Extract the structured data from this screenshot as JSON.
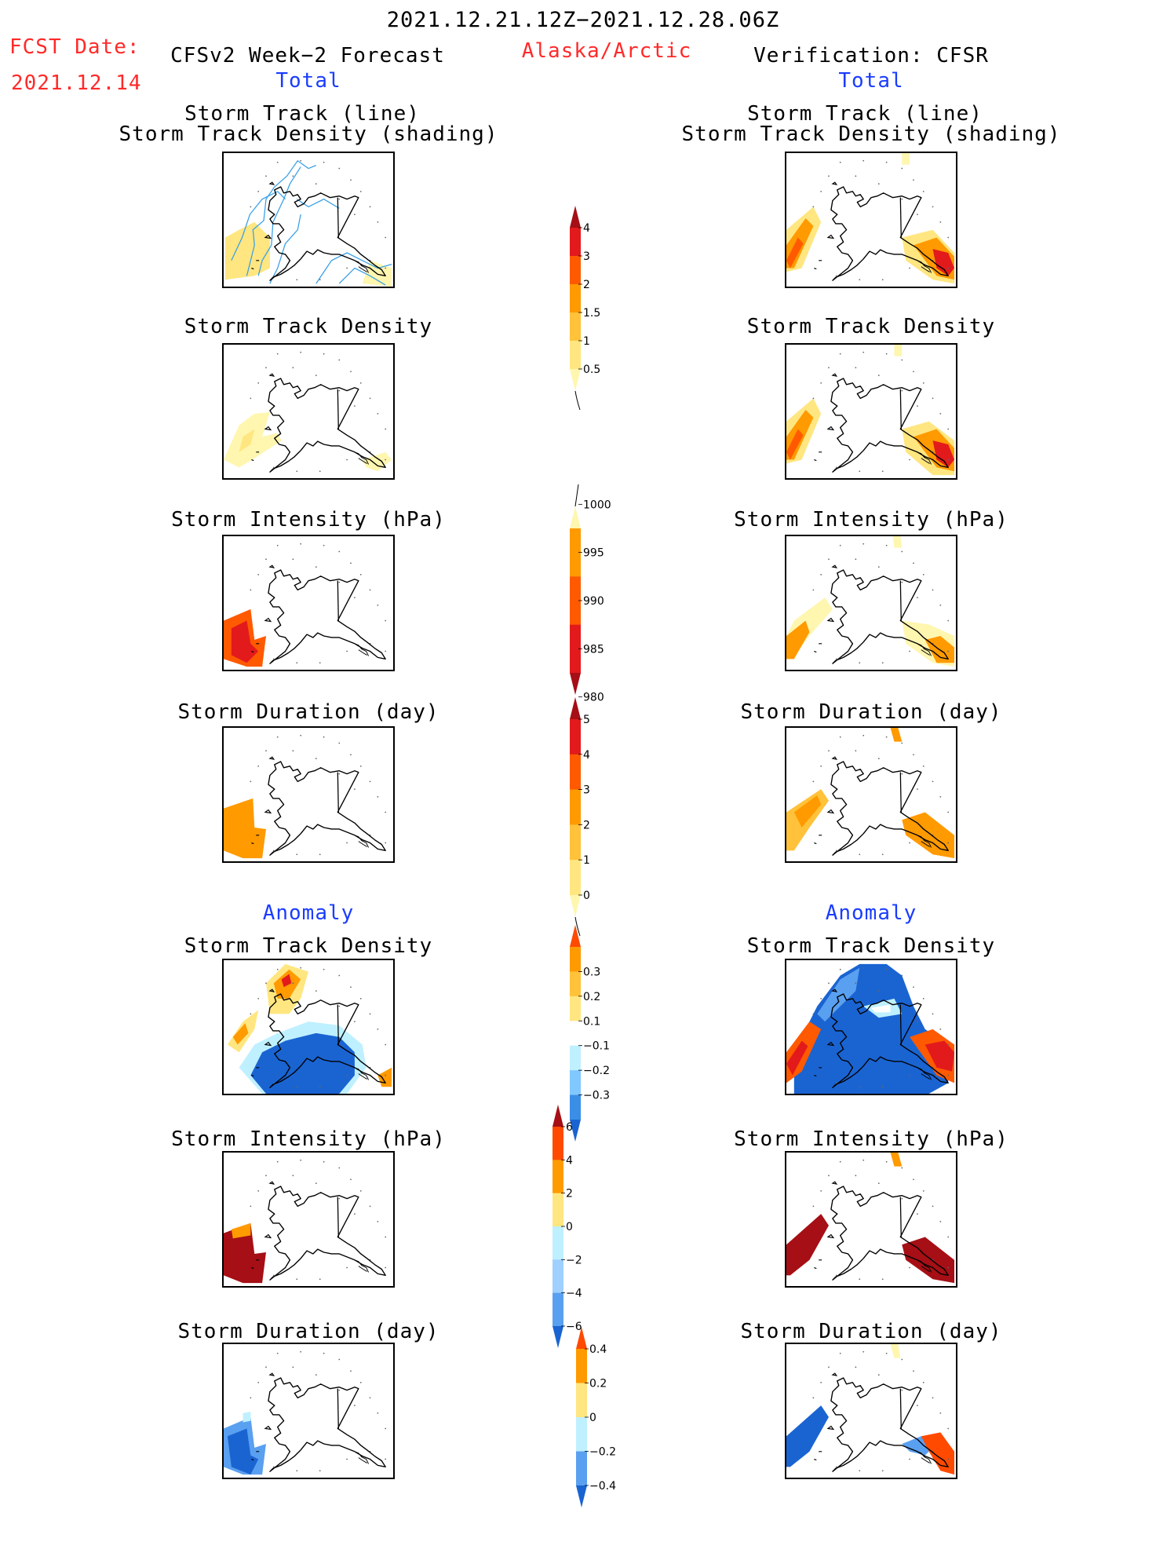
{
  "header": {
    "valid_period": "2021.12.21.12Z−2021.12.28.06Z",
    "fcst_label": "FCST Date:",
    "fcst_date": "2021.12.14",
    "forecast_title": "CFSv2 Week−2 Forecast",
    "region": "Alaska/Arctic",
    "verification_title": "Verification: CFSR",
    "total_label_left": "Total",
    "total_label_right": "Total",
    "anomaly_label_left": "Anomaly",
    "anomaly_label_right": "Anomaly"
  },
  "panels": {
    "track_line1": "Storm Track (line)",
    "track_line2": "Storm Track Density (shading)",
    "density": "Storm Track Density",
    "intensity": "Storm Intensity (hPa)",
    "duration": "Storm Duration (day)"
  },
  "colorbars": {
    "density_total": {
      "ticks": [
        "4",
        "3",
        "2",
        "1.5",
        "1",
        "0.5"
      ],
      "colors": [
        "#a50f15",
        "#e31a1c",
        "#ff5a00",
        "#ff9a00",
        "#ffc23a",
        "#ffe680",
        "#fff6b0"
      ]
    },
    "intensity_total": {
      "ticks": [
        "1000",
        "995",
        "990",
        "985",
        "980"
      ],
      "colors": [
        "#fff6b0",
        "#ff9a00",
        "#ff5a00",
        "#e31a1c",
        "#a50f15"
      ]
    },
    "duration_total": {
      "ticks": [
        "5",
        "4",
        "3",
        "2",
        "1",
        "0"
      ],
      "colors": [
        "#a50f15",
        "#e31a1c",
        "#ff5a00",
        "#ff9a00",
        "#ffc23a",
        "#ffe680",
        "#fff6b0"
      ]
    },
    "density_anom": {
      "ticks": [
        "0.3",
        "0.2",
        "0.1",
        "−0.1",
        "−0.2",
        "−0.3"
      ],
      "colors": [
        "#ff4a00",
        "#ff9a00",
        "#ffc23a",
        "#ffe680",
        "#ffffff",
        "#bff0ff",
        "#80c8ff",
        "#3b8ee6",
        "#1a64d2"
      ]
    },
    "intensity_anom": {
      "ticks": [
        "6",
        "4",
        "2",
        "0",
        "−2",
        "−4",
        "−6"
      ],
      "colors": [
        "#a50f15",
        "#ff4a00",
        "#ff9a00",
        "#ffe680",
        "#bff0ff",
        "#9fd0ff",
        "#5aa0f0",
        "#1a64d2"
      ]
    },
    "duration_anom": {
      "ticks": [
        "0.4",
        "0.2",
        "0",
        "−0.2",
        "−0.4"
      ],
      "colors": [
        "#ff4a00",
        "#ff9a00",
        "#ffe680",
        "#bff0ff",
        "#5aa0f0",
        "#1a64d2"
      ]
    }
  },
  "legend_colors": {
    "dark_red": "#a50f15",
    "red": "#e31a1c",
    "orange_red": "#ff5a00",
    "orange": "#ff9a00",
    "light_orange": "#ffc23a",
    "yellow": "#ffe680",
    "pale_yellow": "#fff6b0",
    "light_blue": "#bff0ff",
    "mid_blue": "#5aa0f0",
    "dark_blue": "#1a64d2",
    "track_line": "#3aa0e8"
  }
}
